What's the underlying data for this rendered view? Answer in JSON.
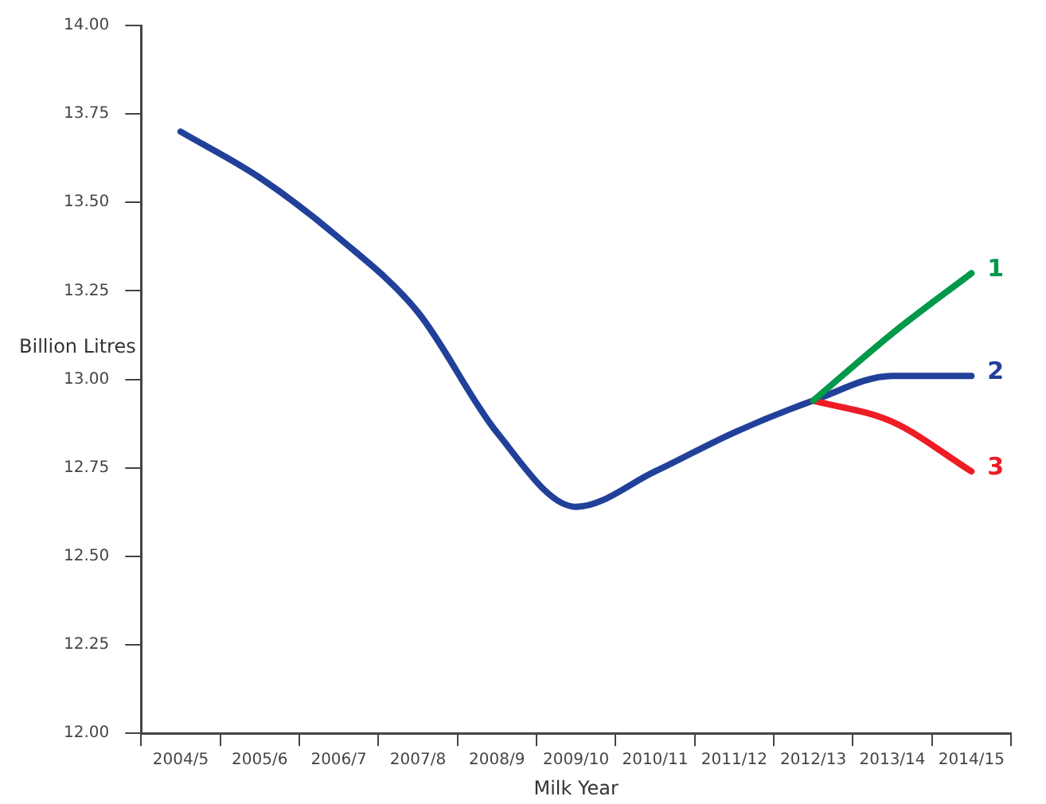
{
  "chart_data": {
    "type": "line",
    "xlabel": "Milk Year",
    "ylabel": "Billion Litres",
    "categories": [
      "2004/5",
      "2005/6",
      "2006/7",
      "2007/8",
      "2008/9",
      "2009/10",
      "2010/11",
      "2011/12",
      "2012/13",
      "2013/14",
      "2014/15"
    ],
    "series": [
      {
        "name": "1",
        "color": "#00994a",
        "values": [
          null,
          null,
          null,
          null,
          null,
          null,
          null,
          null,
          12.94,
          13.13,
          13.3
        ]
      },
      {
        "name": "3",
        "color": "#ee1c25",
        "values": [
          null,
          null,
          null,
          null,
          null,
          null,
          null,
          null,
          12.94,
          12.88,
          12.74
        ]
      },
      {
        "name": "2",
        "color": "#21409a",
        "values": [
          13.7,
          13.57,
          13.4,
          13.19,
          12.85,
          12.64,
          12.74,
          12.85,
          12.94,
          13.01,
          13.01
        ]
      }
    ],
    "ylim": [
      12,
      14
    ],
    "yticks": [
      {
        "value": 12,
        "label": "12.00"
      },
      {
        "value": 12.25,
        "label": "12.25"
      },
      {
        "value": 12.5,
        "label": "12.50"
      },
      {
        "value": 12.75,
        "label": "12.75"
      },
      {
        "value": 13,
        "label": "13.00"
      },
      {
        "value": 13.25,
        "label": "13.25"
      },
      {
        "value": 13.5,
        "label": "13.50"
      },
      {
        "value": 13.75,
        "label": "13.75"
      },
      {
        "value": 14,
        "label": "14.00"
      }
    ],
    "grid": false,
    "legend": false,
    "marker": "none",
    "line_style": "solid"
  }
}
